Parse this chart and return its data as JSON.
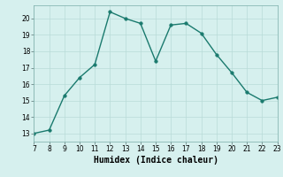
{
  "x": [
    7,
    8,
    9,
    10,
    11,
    12,
    13,
    14,
    15,
    16,
    17,
    18,
    19,
    20,
    21,
    22,
    23
  ],
  "y": [
    13.0,
    13.2,
    15.3,
    16.4,
    17.2,
    20.4,
    20.0,
    19.7,
    17.4,
    19.6,
    19.7,
    19.1,
    17.8,
    16.7,
    15.5,
    15.0,
    15.2
  ],
  "line_color": "#1a7a6e",
  "marker": "o",
  "marker_size": 2.5,
  "bg_color": "#d6f0ee",
  "grid_color": "#b8dbd8",
  "xlabel": "Humidex (Indice chaleur)",
  "xlim": [
    7,
    23
  ],
  "ylim": [
    12.5,
    20.8
  ],
  "xticks": [
    7,
    8,
    9,
    10,
    11,
    12,
    13,
    14,
    15,
    16,
    17,
    18,
    19,
    20,
    21,
    22,
    23
  ],
  "yticks": [
    13,
    14,
    15,
    16,
    17,
    18,
    19,
    20
  ],
  "tick_fontsize": 5.5,
  "xlabel_fontsize": 7,
  "line_width": 1.0
}
